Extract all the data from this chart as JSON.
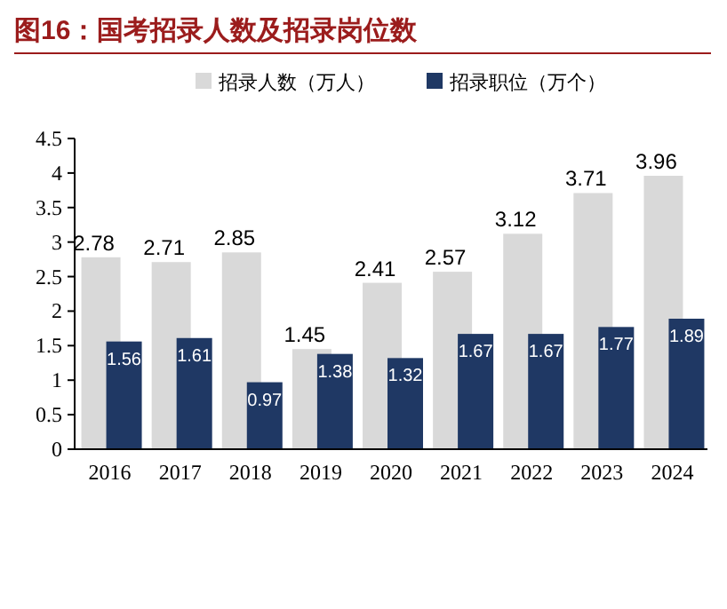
{
  "chart_data": {
    "type": "bar",
    "title": "图16：国考招录人数及招录岗位数",
    "categories": [
      "2016",
      "2017",
      "2018",
      "2019",
      "2020",
      "2021",
      "2022",
      "2023",
      "2024"
    ],
    "series": [
      {
        "name": "招录人数（万人）",
        "color": "#d9d9d9",
        "values": [
          2.78,
          2.71,
          2.85,
          1.45,
          2.41,
          2.57,
          3.12,
          3.71,
          3.96
        ]
      },
      {
        "name": "招录职位（万个）",
        "color": "#1f3864",
        "values": [
          1.56,
          1.61,
          0.97,
          1.38,
          1.32,
          1.67,
          1.67,
          1.77,
          1.89
        ]
      }
    ],
    "ylim": [
      0,
      4.5
    ],
    "yticks": [
      0,
      0.5,
      1,
      1.5,
      2,
      2.5,
      3,
      3.5,
      4,
      4.5
    ],
    "data_labels": true,
    "legend": "top",
    "grid": false
  }
}
